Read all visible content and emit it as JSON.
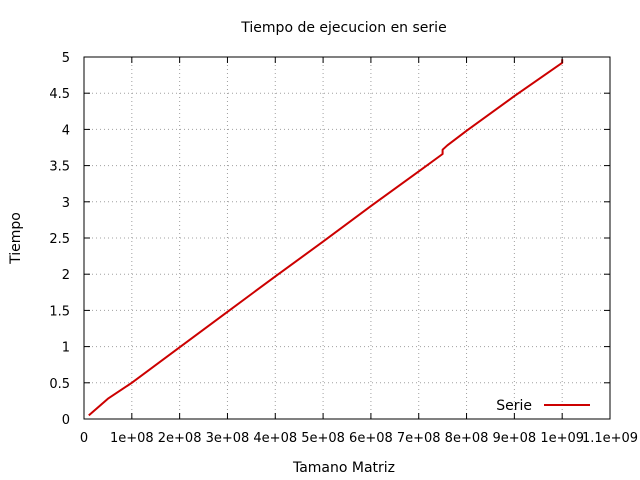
{
  "chart_data": {
    "type": "line",
    "title": "Tiempo de ejecucion en serie",
    "xlabel": "Tamano Matriz",
    "ylabel": "Tiempo",
    "xlim": [
      0,
      1100000000
    ],
    "ylim": [
      0,
      5
    ],
    "x_ticks": [
      0,
      100000000,
      200000000,
      300000000,
      400000000,
      500000000,
      600000000,
      700000000,
      800000000,
      900000000,
      1000000000,
      1100000000
    ],
    "x_tick_labels": [
      "0",
      "1e+08",
      "2e+08",
      "3e+08",
      "4e+08",
      "5e+08",
      "6e+08",
      "7e+08",
      "8e+08",
      "9e+08",
      "1e+09",
      "1.1e+09"
    ],
    "y_ticks": [
      0,
      0.5,
      1,
      1.5,
      2,
      2.5,
      3,
      3.5,
      4,
      4.5,
      5
    ],
    "y_tick_labels": [
      "0",
      "0.5",
      "1",
      "1.5",
      "2",
      "2.5",
      "3",
      "3.5",
      "4",
      "4.5",
      "5"
    ],
    "grid": true,
    "legend_position": "bottom-right",
    "series": [
      {
        "name": "Serie",
        "color": "#cc0000",
        "x": [
          10000000,
          50000000,
          100000000,
          200000000,
          300000000,
          400000000,
          500000000,
          600000000,
          700000000,
          750000000,
          750000000,
          760000000,
          800000000,
          900000000,
          1000000000,
          1000000000
        ],
        "y": [
          0.05,
          0.28,
          0.5,
          0.99,
          1.48,
          1.97,
          2.45,
          2.94,
          3.42,
          3.66,
          3.72,
          3.78,
          3.98,
          4.46,
          4.92,
          4.97
        ]
      }
    ]
  }
}
